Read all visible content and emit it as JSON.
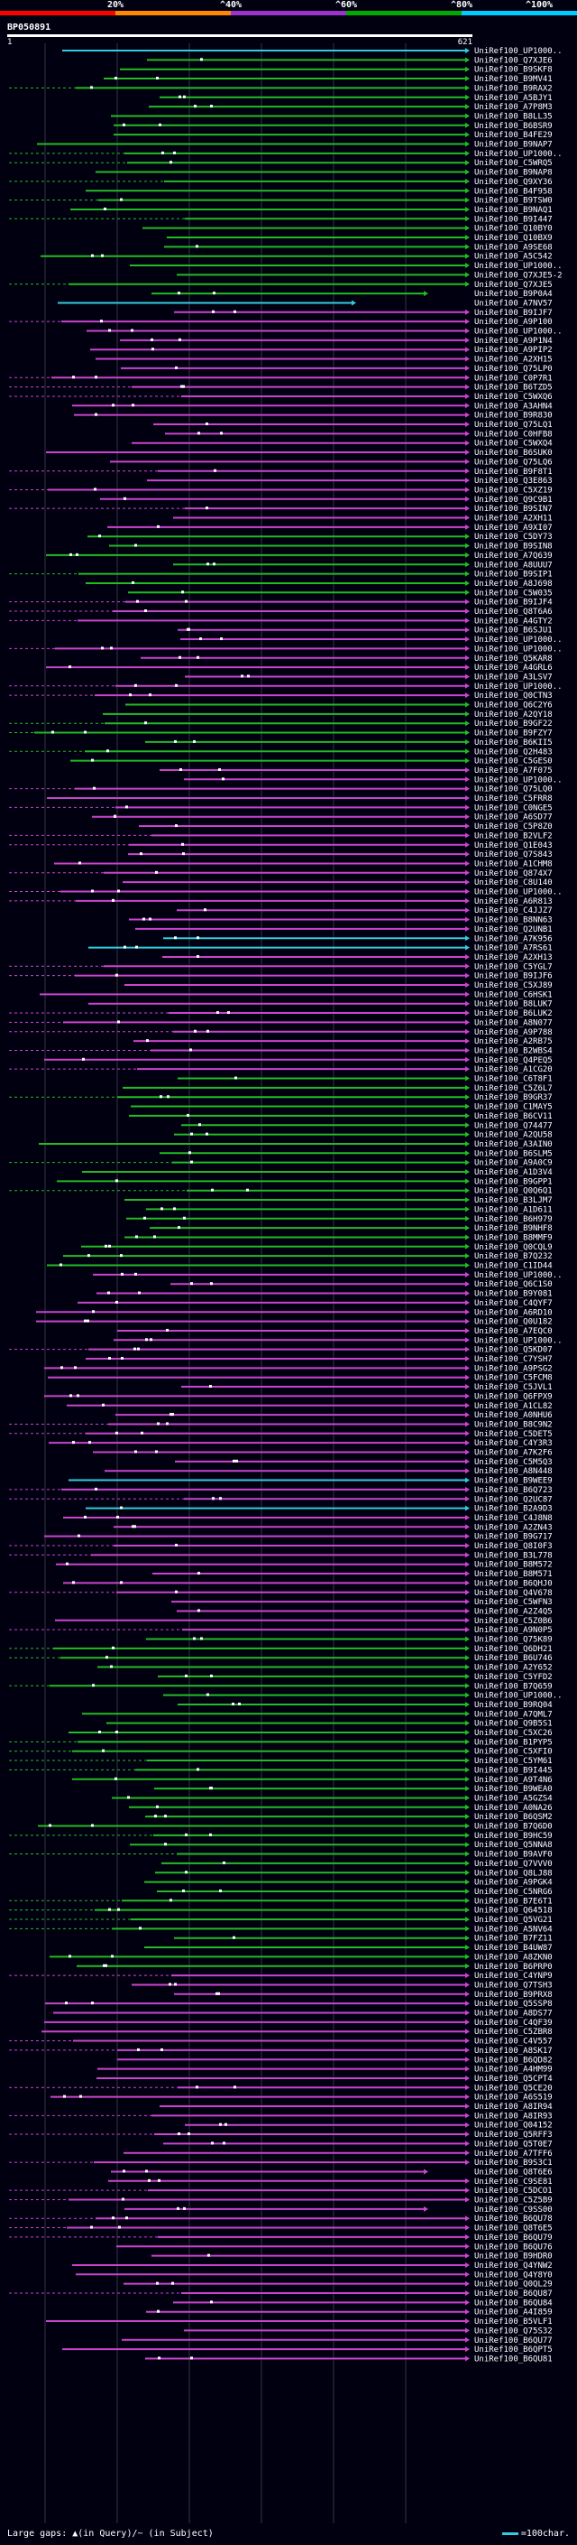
{
  "header": {
    "legend": {
      "ticks": [
        "20%",
        "^40%",
        "^60%",
        "^80%",
        "^100%"
      ],
      "colors": [
        "#ff0000",
        "#ff8800",
        "#9933cc",
        "#00aa00",
        "#00ccff"
      ]
    },
    "query_id": "BP050891",
    "scale_start": "1",
    "scale_end": "621"
  },
  "hits_colors": {
    "magenta": "#cc44cc",
    "green": "#22bb22",
    "cyan": "#33ccdd",
    "gap": "#ffffff"
  },
  "hits": [
    "UniRef100_UP1000..",
    "UniRef100_Q7XJE6",
    "UniRef100_B9SKF8",
    "UniRef100_B9MV41",
    "UniRef100_B9RAX2",
    "UniRef100_A5BJY1",
    "UniRef100_A7P8M3",
    "UniRef100_B8LL35",
    "UniRef100_B6BSR9",
    "UniRef100_B4FE29",
    "UniRef100_B9NAP7",
    "UniRef100_UP1000..",
    "UniRef100_C5WRQ5",
    "UniRef100_B9NAP8",
    "UniRef100_Q9XY36",
    "UniRef100_B4F958",
    "UniRef100_B9TSW0",
    "UniRef100_B9NAQ1",
    "UniRef100_B9I447",
    "UniRef100_Q10BY0",
    "UniRef100_Q10BX9",
    "UniRef100_A9SE68",
    "UniRef100_A5C542",
    "UniRef100_UP1000..",
    "UniRef100_Q7XJE5-2",
    "UniRef100_Q7XJE5",
    "UniRef100_B9P0A4",
    "UniRef100_A7NV57",
    "UniRef100_B9IJF7",
    "UniRef100_A9P100",
    "UniRef100_UP1000..",
    "UniRef100_A9P1N4",
    "UniRef100_A9PIP2",
    "UniRef100_A2XH15",
    "UniRef100_Q75LP0",
    "UniRef100_C0P7R1",
    "UniRef100_B6TZD5",
    "UniRef100_C5WXQ6",
    "UniRef100_A3AHN4",
    "UniRef100_B9R830",
    "UniRef100_Q75LQ1",
    "UniRef100_C0HFB8",
    "UniRef100_C5WXQ4",
    "UniRef100_B6SUK0",
    "UniRef100_Q75LQ6",
    "UniRef100_B9F8T1",
    "UniRef100_Q3E863",
    "UniRef100_C5XZ19",
    "UniRef100_Q9C9B1",
    "UniRef100_B9SIN7",
    "UniRef100_A2XH11",
    "UniRef100_A9XI07",
    "UniRef100_C5DY73",
    "UniRef100_B9SIN8",
    "UniRef100_A7Q639",
    "UniRef100_A8UUU7",
    "UniRef100_B9SIP1",
    "UniRef100_A8J698",
    "UniRef100_C5W035",
    "UniRef100_B9IJF4",
    "UniRef100_Q8T6A6",
    "UniRef100_A4GTY2",
    "UniRef100_B6SJU1",
    "UniRef100_UP1000..",
    "UniRef100_UP1000..",
    "UniRef100_Q5KAR8",
    "UniRef100_A4GRL6",
    "UniRef100_A3LSV7",
    "UniRef100_UP1000..",
    "UniRef100_Q0CTN3",
    "UniRef100_Q6C2Y6",
    "UniRef100_A2QY18",
    "UniRef100_B9GF22",
    "UniRef100_B9FZY7",
    "UniRef100_B6KII5",
    "UniRef100_Q2H483",
    "UniRef100_C5GES0",
    "UniRef100_A7F075",
    "UniRef100_UP1000..",
    "UniRef100_Q75LQ0",
    "UniRef100_C5FRR8",
    "UniRef100_C0NGE5",
    "UniRef100_A6SD77",
    "UniRef100_C5P8Z0",
    "UniRef100_B2VLF2",
    "UniRef100_Q1E043",
    "UniRef100_Q7S843",
    "UniRef100_A1CHM8",
    "UniRef100_Q874X7",
    "UniRef100_C8U140",
    "UniRef100_UP1000..",
    "UniRef100_A6R813",
    "UniRef100_C4JJZ7",
    "UniRef100_B8NN63",
    "UniRef100_Q2UNB1",
    "UniRef100_A7K956",
    "UniRef100_A7RS61",
    "UniRef100_A2XH13",
    "UniRef100_C5YGL7",
    "UniRef100_B9IJF6",
    "UniRef100_C5XJ89",
    "UniRef100_C6HSK1",
    "UniRef100_B8LUK7",
    "UniRef100_B6LUK2",
    "UniRef100_A8N077",
    "UniRef100_A9P788",
    "UniRef100_A2RB75",
    "UniRef100_B2WBS4",
    "UniRef100_Q4PEQ5",
    "UniRef100_A1CG20",
    "UniRef100_C6T8F1",
    "UniRef100_C5Z6L7",
    "UniRef100_B9GR37",
    "UniRef100_C1MAY5",
    "UniRef100_B6CV11",
    "UniRef100_Q74477",
    "UniRef100_A2QU58",
    "UniRef100_A3AIN0",
    "UniRef100_B6SLM5",
    "UniRef100_A9A0C9",
    "UniRef100_A1D3V4",
    "UniRef100_B9GPP1",
    "UniRef100_Q0Q6Q1",
    "UniRef100_B3LJM7",
    "UniRef100_A1D611",
    "UniRef100_B6H979",
    "UniRef100_B9NHF8",
    "UniRef100_B8MMF9",
    "UniRef100_Q0CQL9",
    "UniRef100_B7Q232",
    "UniRef100_C1ID44",
    "UniRef100_UP1000..",
    "UniRef100_Q6C1S0",
    "UniRef100_B9Y081",
    "UniRef100_C4QYF7",
    "UniRef100_A6RD10",
    "UniRef100_Q0U182",
    "UniRef100_A7EQC0",
    "UniRef100_UP1000..",
    "UniRef100_Q5KD07",
    "UniRef100_C7YSH7",
    "UniRef100_A9PSG2",
    "UniRef100_C5FCM8",
    "UniRef100_C5JVL1",
    "UniRef100_Q6FPX9",
    "UniRef100_A1CL82",
    "UniRef100_A0NHU6",
    "UniRef100_B8C9N2",
    "UniRef100_C5DET5",
    "UniRef100_C4Y3R3",
    "UniRef100_A7K2F6",
    "UniRef100_C5M5Q3",
    "UniRef100_A8N448",
    "UniRef100_B9WEE9",
    "UniRef100_B6Q723",
    "UniRef100_Q2UC87",
    "UniRef100_B2A9D3",
    "UniRef100_C4J8N8",
    "UniRef100_A2ZN43",
    "UniRef100_B9G717",
    "UniRef100_Q8I0F3",
    "UniRef100_B3L778",
    "UniRef100_B8M572",
    "UniRef100_B8M571",
    "UniRef100_B6QHJ0",
    "UniRef100_Q4V678",
    "UniRef100_C5WFN3",
    "UniRef100_A2Z4Q5",
    "UniRef100_C5Z0B6",
    "UniRef100_A9N0P5",
    "UniRef100_Q75K89",
    "UniRef100_Q6DH21",
    "UniRef100_B6U746",
    "UniRef100_A2Y652",
    "UniRef100_C5YFD2",
    "UniRef100_B7Q659",
    "UniRef100_UP1000..",
    "UniRef100_B9RQ04",
    "UniRef100_A7QML7",
    "UniRef100_Q9B5S1",
    "UniRef100_C5XC26",
    "UniRef100_B1PYP5",
    "UniRef100_C5XFI0",
    "UniRef100_C5YM61",
    "UniRef100_B9I445",
    "UniRef100_A9T4N6",
    "UniRef100_B9WEA0",
    "UniRef100_A5GZS4",
    "UniRef100_A0NA26",
    "UniRef100_B6QSM2",
    "UniRef100_B7Q6D0",
    "UniRef100_B9HC59",
    "UniRef100_Q5NNA8",
    "UniRef100_B9AVF0",
    "UniRef100_Q7VVV0",
    "UniRef100_Q8LJ88",
    "UniRef100_A9PGK4",
    "UniRef100_C5NRG6",
    "UniRef100_B7E6T1",
    "UniRef100_Q64518",
    "UniRef100_Q5VG21",
    "UniRef100_A5NV64",
    "UniRef100_B7FZ11",
    "UniRef100_B4UW87",
    "UniRef100_A8ZKN0",
    "UniRef100_B6PRP0",
    "UniRef100_C4YNP9",
    "UniRef100_Q7TSH3",
    "UniRef100_B9PRX8",
    "UniRef100_Q5SSP8",
    "UniRef100_A8DS77",
    "UniRef100_C4QF39",
    "UniRef100_C5ZBR8",
    "UniRef100_C4V557",
    "UniRef100_A8SK17",
    "UniRef100_B6QD82",
    "UniRef100_A4HM99",
    "UniRef100_Q5CPT4",
    "UniRef100_Q5CE20",
    "UniRef100_A6S519",
    "UniRef100_A8IR94",
    "UniRef100_A8IR93",
    "UniRef100_Q04152",
    "UniRef100_Q5RFF3",
    "UniRef100_Q5T0E7",
    "UniRef100_A7TFF6",
    "UniRef100_B9S3C1",
    "UniRef100_Q8T6E6",
    "UniRef100_C9SE81",
    "UniRef100_C5DCO1",
    "UniRef100_C5Z5B9",
    "UniRef100_C9SS00",
    "UniRef100_B6QU78",
    "UniRef100_Q8T6E5",
    "UniRef100_B6QU79",
    "UniRef100_B6QU76",
    "UniRef100_B9HDR0",
    "UniRef100_Q4YNW2",
    "UniRef100_Q4Y8Y0",
    "UniRef100_Q0QL29",
    "UniRef100_B6QU87",
    "UniRef100_B6QU84",
    "UniRef100_A4I859",
    "UniRef100_B5VLF1",
    "UniRef100_Q75S32",
    "UniRef100_B6QU77",
    "UniRef100_B6QPT5",
    "UniRef100_B6QU81"
  ],
  "footer": {
    "large_gaps_text": "Large gaps: ▲(in Query)/~ (in Subject)",
    "scale_text": "=100char."
  }
}
